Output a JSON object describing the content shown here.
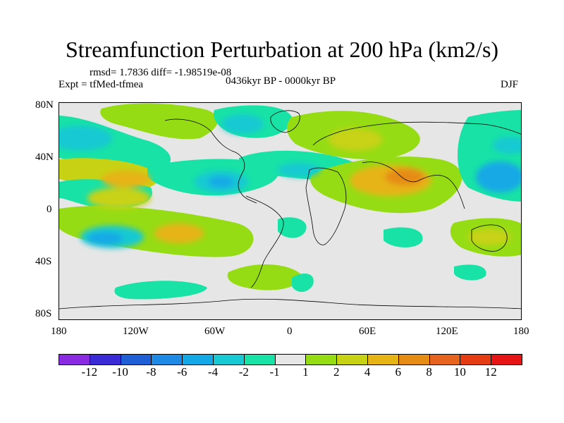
{
  "title": "Streamfunction Perturbation at 200 hPa (km2/s)",
  "stats": "rmsd= 1.7836 diff= -1.98519e-08",
  "experiment": "Expt = tfMed-tfmea",
  "period": "0436kyr BP - 0000kyr BP",
  "season": "DJF",
  "axes": {
    "y_ticks": [
      "80N",
      "40N",
      "0",
      "40S",
      "80S"
    ],
    "x_ticks": [
      "180",
      "120W",
      "60W",
      "0",
      "60E",
      "120E",
      "180"
    ]
  },
  "colorbar": {
    "labels": [
      "-12",
      "-10",
      "-8",
      "-6",
      "-4",
      "-2",
      "-1",
      "1",
      "2",
      "4",
      "6",
      "8",
      "10",
      "12"
    ],
    "colors": [
      "#8a2be2",
      "#3b2bd6",
      "#1e5fd6",
      "#1e8ae6",
      "#14a9e6",
      "#16c9d2",
      "#18e2a6",
      "#e6e6e6",
      "#96dc14",
      "#c8d214",
      "#e6b414",
      "#e68c14",
      "#e6641e",
      "#e63c14",
      "#e61414"
    ]
  },
  "colors": {
    "ocean_neutral": "#e6e6e6",
    "coastline": "#000000"
  }
}
